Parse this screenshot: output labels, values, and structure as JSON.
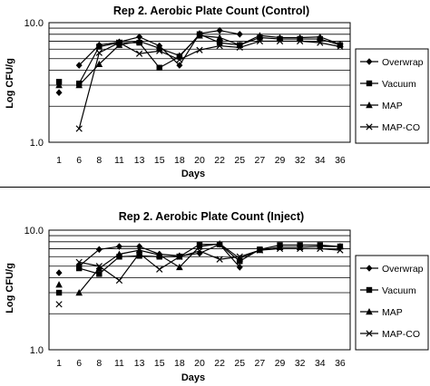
{
  "chart_data": [
    {
      "type": "line",
      "title": "Rep 2.  Aerobic Plate Count (Control)",
      "xlabel": "Days",
      "ylabel": "Log CFU/g",
      "yscale": "log",
      "ylim": [
        1.0,
        10.0
      ],
      "ytick_labels": [
        "1.0",
        "10.0"
      ],
      "categories": [
        "1",
        "6",
        "8",
        "11",
        "13",
        "15",
        "18",
        "20",
        "22",
        "25",
        "27",
        "29",
        "32",
        "34",
        "36"
      ],
      "grid": "horizontal",
      "legend_position": "right",
      "series": [
        {
          "name": "Overwrap",
          "marker": "diamond",
          "values": [
            2.6,
            4.4,
            6.5,
            6.9,
            7.6,
            6.4,
            4.4,
            8.1,
            8.6,
            8.0,
            null,
            null,
            null,
            null,
            null
          ]
        },
        {
          "name": "Vacuum",
          "marker": "square",
          "values": [
            3.2,
            3.1,
            6.3,
            6.8,
            6.8,
            4.2,
            5.2,
            8.0,
            6.8,
            6.5,
            7.5,
            7.3,
            7.3,
            7.3,
            6.5
          ]
        },
        {
          "name": "MAP",
          "marker": "triangle",
          "values": [
            3.0,
            3.0,
            4.5,
            6.5,
            7.0,
            6.1,
            5.3,
            7.8,
            7.5,
            6.5,
            7.8,
            7.5,
            7.5,
            7.6,
            6.6
          ]
        },
        {
          "name": "MAP-CO",
          "marker": "x",
          "values": [
            null,
            1.3,
            5.6,
            6.8,
            5.5,
            5.8,
            4.9,
            5.9,
            6.4,
            6.2,
            7.0,
            7.0,
            7.0,
            6.8,
            6.3
          ]
        }
      ]
    },
    {
      "type": "line",
      "title": "Rep 2.  Aerobic Plate Count (Inject)",
      "xlabel": "Days",
      "ylabel": "Log CFU/g",
      "yscale": "log",
      "ylim": [
        1.0,
        10.0
      ],
      "ytick_labels": [
        "1.0",
        "10.0"
      ],
      "categories": [
        "1",
        "6",
        "8",
        "11",
        "13",
        "15",
        "18",
        "20",
        "22",
        "25",
        "27",
        "29",
        "32",
        "34",
        "36"
      ],
      "grid": "horizontal",
      "legend_position": "right",
      "series": [
        {
          "name": "Overwrap",
          "marker": "diamond",
          "values": [
            4.4,
            5.0,
            6.9,
            7.3,
            7.3,
            6.3,
            6.1,
            6.4,
            7.6,
            4.9,
            null,
            null,
            null,
            null,
            null
          ]
        },
        {
          "name": "Vacuum",
          "marker": "square",
          "values": [
            3.0,
            4.8,
            4.3,
            6.0,
            6.1,
            6.0,
            6.0,
            7.6,
            7.6,
            5.5,
            6.9,
            7.5,
            7.5,
            7.5,
            7.3
          ]
        },
        {
          "name": "MAP",
          "marker": "triangle",
          "values": [
            3.5,
            3.0,
            4.8,
            6.3,
            6.8,
            6.2,
            4.9,
            7.3,
            7.7,
            5.8,
            6.8,
            7.2,
            7.2,
            7.3,
            7.3
          ]
        },
        {
          "name": "MAP-CO",
          "marker": "x",
          "values": [
            2.4,
            5.4,
            5.0,
            3.8,
            6.4,
            4.7,
            6.0,
            6.7,
            5.7,
            6.0,
            6.8,
            7.0,
            7.0,
            7.0,
            6.8
          ]
        }
      ]
    }
  ]
}
